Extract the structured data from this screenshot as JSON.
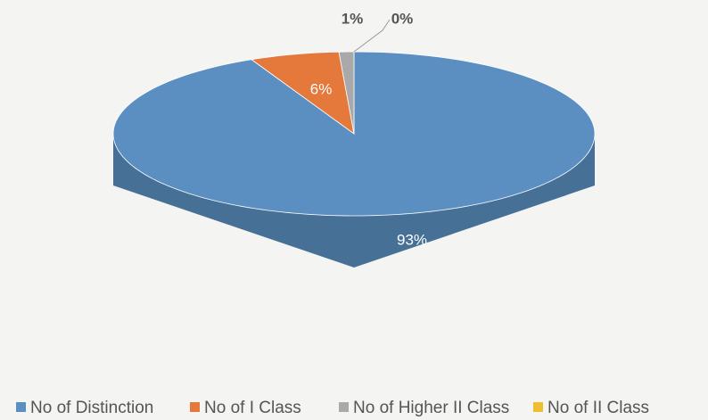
{
  "chart_data": {
    "type": "pie3d",
    "categories": [
      "No of Distinction",
      "No of I Class",
      "No of Higher II Class",
      "No of II Class"
    ],
    "values": [
      93,
      6,
      1,
      0
    ],
    "value_labels": [
      "93%",
      "6%",
      "1%",
      "0%"
    ],
    "colors": [
      "#5b8fc2",
      "#e4793b",
      "#a9a9a9",
      "#f0bf2e"
    ],
    "legend": "bottom"
  }
}
